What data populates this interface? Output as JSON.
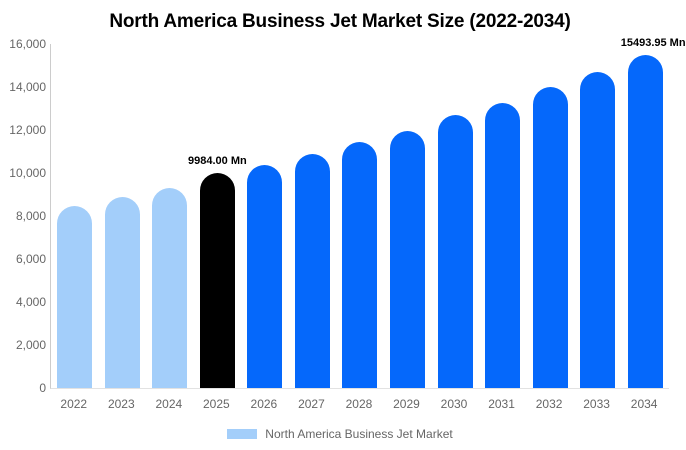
{
  "chart_data": {
    "type": "bar",
    "title": "North America Business Jet Market Size (2022-2034)",
    "xlabel": "",
    "ylabel": "",
    "unit": "Mn",
    "categories": [
      "2022",
      "2023",
      "2024",
      "2025",
      "2026",
      "2027",
      "2028",
      "2029",
      "2030",
      "2031",
      "2032",
      "2033",
      "2034"
    ],
    "values": [
      8450,
      8880,
      9310,
      9984,
      10360,
      10890,
      11450,
      11960,
      12680,
      13270,
      13980,
      14690,
      15493.95
    ],
    "value_labels": [
      "",
      "",
      "",
      "9984.00 Mn",
      "",
      "",
      "",
      "",
      "",
      "",
      "",
      "",
      "15493.95 Mn"
    ],
    "bar_colors": [
      "#a3cefa",
      "#a3cefa",
      "#a3cefa",
      "#000000",
      "#0568fb",
      "#0568fb",
      "#0568fb",
      "#0568fb",
      "#0568fb",
      "#0568fb",
      "#0568fb",
      "#0568fb",
      "#0568fb"
    ],
    "ylim": [
      0,
      16000
    ],
    "ytick_values": [
      0,
      2000,
      4000,
      6000,
      8000,
      10000,
      12000,
      14000,
      16000
    ],
    "ytick_labels": [
      "0",
      "2,000",
      "4,000",
      "6,000",
      "8,000",
      "10,000",
      "12,000",
      "14,000",
      "16,000"
    ],
    "grid": false,
    "legend": {
      "position": "bottom",
      "items": [
        {
          "label": "North America Business Jet Market",
          "color": "#a3cefa"
        }
      ]
    },
    "colors": {
      "historical": "#a3cefa",
      "highlight": "#000000",
      "forecast": "#0568fb",
      "axis_line": "#cccccc",
      "baseline": "#e2e2e2",
      "tick_text": "#666666"
    }
  }
}
